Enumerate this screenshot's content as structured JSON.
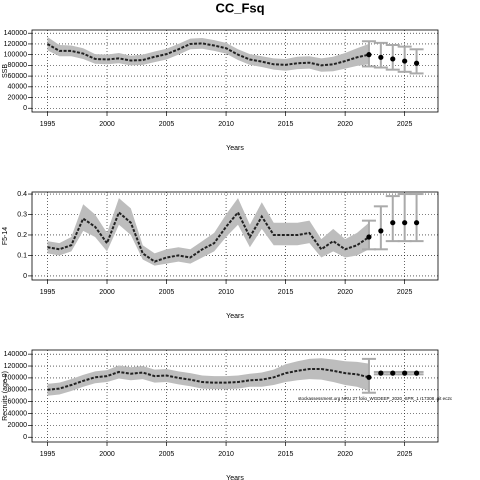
{
  "title": "CC_Fsq",
  "chart_data": [
    {
      "type": "line",
      "ylabel": "SSB",
      "xlabel": "Years",
      "x": [
        1995,
        1996,
        1997,
        1998,
        1999,
        2000,
        2001,
        2002,
        2003,
        2004,
        2005,
        2006,
        2007,
        2008,
        2009,
        2010,
        2011,
        2012,
        2013,
        2014,
        2015,
        2016,
        2017,
        2018,
        2019,
        2020,
        2021,
        2022
      ],
      "values": [
        120000,
        107000,
        107000,
        102000,
        92000,
        91000,
        93000,
        89000,
        90000,
        96000,
        101000,
        110000,
        120000,
        121000,
        117000,
        112000,
        100000,
        91000,
        87000,
        82000,
        81000,
        84000,
        85000,
        80000,
        82000,
        88000,
        95000,
        100000
      ],
      "upper": [
        133000,
        118000,
        117000,
        112000,
        101000,
        100000,
        103000,
        98000,
        100000,
        106000,
        111000,
        120000,
        130000,
        131000,
        127000,
        122000,
        110000,
        101000,
        97000,
        93000,
        92000,
        96000,
        97000,
        93000,
        96000,
        103000,
        112000,
        120000
      ],
      "lower": [
        108000,
        97000,
        97000,
        92000,
        83000,
        82000,
        84000,
        80000,
        81000,
        86000,
        91000,
        100000,
        110000,
        111000,
        107000,
        102000,
        90000,
        81000,
        77000,
        72000,
        70000,
        73000,
        74000,
        68000,
        69000,
        74000,
        79000,
        82000
      ],
      "projection": {
        "x": [
          2022,
          2023,
          2024,
          2025,
          2026
        ],
        "values": [
          100000,
          95000,
          92000,
          88000,
          84000
        ],
        "lower": [
          78000,
          76000,
          72000,
          68000,
          65000
        ],
        "upper": [
          125000,
          122000,
          118000,
          115000,
          110000
        ]
      },
      "xlim": [
        1993.7,
        2027.8
      ],
      "xticks": [
        1995,
        2000,
        2005,
        2010,
        2015,
        2020,
        2025
      ],
      "ylim": [
        -7000,
        146000
      ],
      "yticks": [
        0,
        20000,
        40000,
        60000,
        80000,
        100000,
        120000,
        140000
      ],
      "grid": true,
      "band_color": "#bdbdbd",
      "line_color": "#222222",
      "errorbar_color": "#aaaaaa"
    },
    {
      "type": "line",
      "ylabel": "F5-14",
      "xlabel": "Years",
      "x": [
        1995,
        1996,
        1997,
        1998,
        1999,
        2000,
        2001,
        2002,
        2003,
        2004,
        2005,
        2006,
        2007,
        2008,
        2009,
        2010,
        2011,
        2012,
        2013,
        2014,
        2015,
        2016,
        2017,
        2018,
        2019,
        2020,
        2021,
        2022
      ],
      "values": [
        0.14,
        0.13,
        0.15,
        0.28,
        0.24,
        0.16,
        0.31,
        0.26,
        0.11,
        0.07,
        0.09,
        0.1,
        0.09,
        0.13,
        0.16,
        0.24,
        0.31,
        0.19,
        0.29,
        0.2,
        0.2,
        0.2,
        0.21,
        0.13,
        0.17,
        0.13,
        0.15,
        0.19
      ],
      "upper": [
        0.17,
        0.16,
        0.19,
        0.35,
        0.3,
        0.21,
        0.38,
        0.33,
        0.15,
        0.11,
        0.13,
        0.14,
        0.13,
        0.17,
        0.21,
        0.3,
        0.38,
        0.25,
        0.36,
        0.26,
        0.26,
        0.26,
        0.27,
        0.18,
        0.23,
        0.18,
        0.21,
        0.26
      ],
      "lower": [
        0.11,
        0.1,
        0.12,
        0.22,
        0.19,
        0.12,
        0.25,
        0.2,
        0.08,
        0.05,
        0.06,
        0.07,
        0.06,
        0.09,
        0.12,
        0.19,
        0.25,
        0.14,
        0.23,
        0.15,
        0.15,
        0.15,
        0.16,
        0.09,
        0.12,
        0.09,
        0.1,
        0.13
      ],
      "projection": {
        "x": [
          2022,
          2023,
          2024,
          2025,
          2026
        ],
        "values": [
          0.19,
          0.22,
          0.26,
          0.26,
          0.26
        ],
        "lower": [
          0.13,
          0.13,
          0.17,
          0.17,
          0.17
        ],
        "upper": [
          0.27,
          0.34,
          0.39,
          0.4,
          0.4
        ]
      },
      "xlim": [
        1993.7,
        2027.8
      ],
      "xticks": [
        1995,
        2000,
        2005,
        2010,
        2015,
        2020,
        2025
      ],
      "ylim": [
        -0.02,
        0.41
      ],
      "yticks": [
        0,
        0.1,
        0.2,
        0.3,
        0.4
      ],
      "grid": true,
      "band_color": "#bdbdbd",
      "line_color": "#222222",
      "errorbar_color": "#aaaaaa"
    },
    {
      "type": "line",
      "ylabel": "Recruits (age 0)",
      "xlabel": "Years",
      "annotation": "stockassessment.org NRU 27 folio_WGDEEP_2020_SPR_1 r17308 .git ec2c",
      "x": [
        1995,
        1996,
        1997,
        1998,
        1999,
        2000,
        2001,
        2002,
        2003,
        2004,
        2005,
        2006,
        2007,
        2008,
        2009,
        2010,
        2011,
        2012,
        2013,
        2014,
        2015,
        2016,
        2017,
        2018,
        2019,
        2020,
        2021,
        2022
      ],
      "values": [
        80000,
        82000,
        88000,
        95000,
        101000,
        103000,
        110000,
        107000,
        109000,
        103000,
        104000,
        100000,
        97000,
        93000,
        92000,
        92000,
        93000,
        96000,
        97000,
        101000,
        108000,
        112000,
        115000,
        115000,
        112000,
        108000,
        106000,
        101000
      ],
      "upper": [
        90000,
        92000,
        98000,
        105000,
        111000,
        113000,
        121000,
        118000,
        120000,
        114000,
        115000,
        111000,
        108000,
        104000,
        103000,
        103000,
        104000,
        107000,
        109000,
        114000,
        123000,
        128000,
        132000,
        133000,
        131000,
        128000,
        127000,
        124000
      ],
      "lower": [
        70000,
        72000,
        78000,
        85000,
        91000,
        93000,
        99000,
        96000,
        98000,
        92000,
        93000,
        89000,
        86000,
        82000,
        81000,
        81000,
        82000,
        85000,
        85000,
        88000,
        93000,
        96000,
        98000,
        97000,
        93000,
        88000,
        85000,
        78000
      ],
      "projection": {
        "x": [
          2022,
          2023,
          2024,
          2025,
          2026
        ],
        "values": [
          101000,
          108000,
          108000,
          108000,
          108000
        ],
        "lower": [
          75000,
          106000,
          106000,
          106000,
          106000
        ],
        "upper": [
          132000,
          110000,
          110000,
          110000,
          110000
        ]
      },
      "xlim": [
        1993.7,
        2027.8
      ],
      "xticks": [
        1995,
        2000,
        2005,
        2010,
        2015,
        2020,
        2025
      ],
      "ylim": [
        -8000,
        147000
      ],
      "yticks": [
        0,
        20000,
        40000,
        60000,
        80000,
        100000,
        120000,
        140000
      ],
      "grid": true,
      "band_color": "#bdbdbd",
      "line_color": "#222222",
      "errorbar_color": "#aaaaaa"
    }
  ]
}
